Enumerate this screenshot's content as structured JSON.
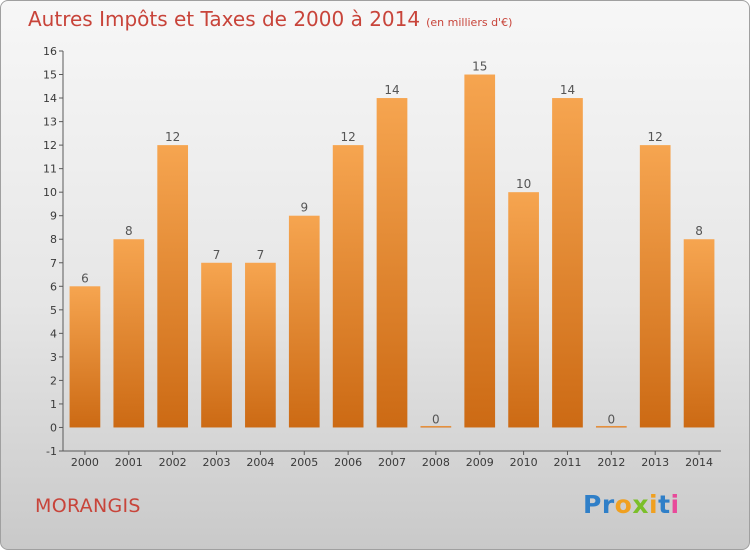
{
  "title": "Autres Impôts et Taxes de 2000 à 2014",
  "subtitle": "(en milliers d'€)",
  "commune": "MORANGIS",
  "logo": {
    "letters": [
      "P",
      "r",
      "o",
      "x",
      "i",
      "t",
      "i"
    ],
    "colors": [
      "#2f7fc8",
      "#2f7fc8",
      "#f0a020",
      "#7bbf2a",
      "#f0a020",
      "#2f7fc8",
      "#e84a9a"
    ]
  },
  "colors": {
    "title": "#c8443a",
    "bar_top": "#f6a550",
    "bar_bottom": "#cc6a14"
  },
  "chart_data": {
    "type": "bar",
    "categories": [
      "2000",
      "2001",
      "2002",
      "2003",
      "2004",
      "2005",
      "2006",
      "2007",
      "2008",
      "2009",
      "2010",
      "2011",
      "2012",
      "2013",
      "2014"
    ],
    "values": [
      6,
      8,
      12,
      7,
      7,
      9,
      12,
      14,
      0,
      15,
      10,
      14,
      0,
      12,
      8
    ],
    "ylim": [
      -1,
      16
    ],
    "yticks": [
      -1,
      0,
      1,
      2,
      3,
      4,
      5,
      6,
      7,
      8,
      9,
      10,
      11,
      12,
      13,
      14,
      15,
      16
    ],
    "grid": false,
    "data_labels": true
  }
}
